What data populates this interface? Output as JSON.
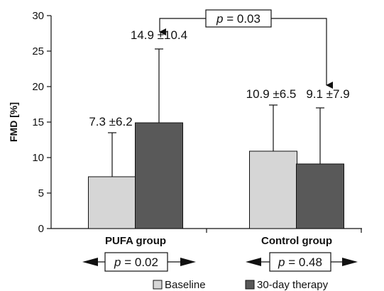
{
  "chart_data": {
    "type": "bar",
    "ylabel": "FMD [%]",
    "ylim": [
      0,
      30
    ],
    "yticks": [
      0,
      5,
      10,
      15,
      20,
      25,
      30
    ],
    "categories": [
      "PUFA group",
      "Control group"
    ],
    "series": [
      {
        "name": "Baseline",
        "color": "#d6d6d6",
        "values": [
          7.3,
          10.9
        ],
        "errors": [
          6.2,
          6.5
        ]
      },
      {
        "name": "30-day therapy",
        "color": "#595959",
        "values": [
          14.9,
          9.1
        ],
        "errors": [
          10.4,
          7.9
        ]
      }
    ],
    "data_labels": [
      [
        "7.3 ±6.2",
        "10.9 ±6.5"
      ],
      [
        "14.9 ±10.4",
        "9.1 ±7.9"
      ]
    ],
    "between_group_p": "0.03",
    "within_group_p": [
      "0.02",
      "0.48"
    ],
    "grid": false,
    "legend_position": "bottom"
  }
}
